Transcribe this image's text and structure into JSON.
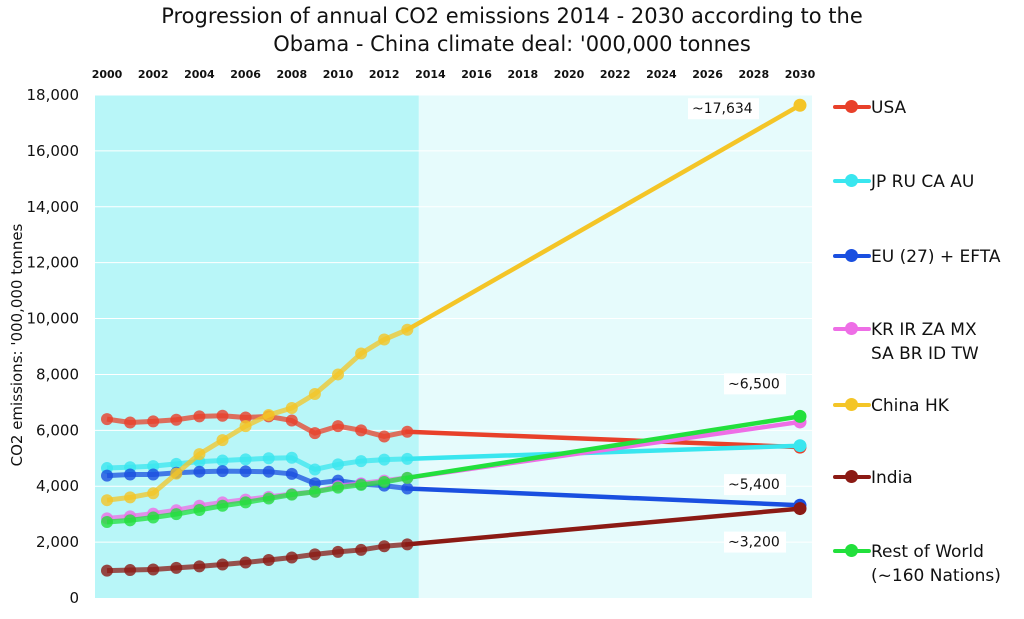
{
  "chart_data": {
    "type": "line",
    "title_line1": "Progression of annual CO2 emissions 2014 - 2030 according to the",
    "title_line2": "Obama - China climate deal:  '000,000 tonnes",
    "ylabel": "CO2 emissions: '000,000 tonnes",
    "xlabel": "",
    "xlim": [
      2000,
      2030
    ],
    "ylim": [
      0,
      18000
    ],
    "x_ticks": [
      2000,
      2002,
      2004,
      2006,
      2008,
      2010,
      2012,
      2014,
      2016,
      2018,
      2020,
      2022,
      2024,
      2026,
      2028,
      2030
    ],
    "y_ticks": [
      0,
      2000,
      4000,
      6000,
      8000,
      10000,
      12000,
      14000,
      16000,
      18000
    ],
    "y_tick_labels": [
      "0",
      "2,000",
      "4,000",
      "6,000",
      "8,000",
      "10,000",
      "12,000",
      "14,000",
      "16,000",
      "18,000"
    ],
    "historical_period": [
      2000,
      2013
    ],
    "projection_period": [
      2013,
      2030
    ],
    "grid": true,
    "legend_position": "right",
    "historical_x": [
      2000,
      2001,
      2002,
      2003,
      2004,
      2005,
      2006,
      2007,
      2008,
      2009,
      2010,
      2011,
      2012,
      2013
    ],
    "series": [
      {
        "name": "USA",
        "color": "#e8402a",
        "historical": [
          6400,
          6280,
          6320,
          6380,
          6500,
          6520,
          6460,
          6500,
          6350,
          5900,
          6150,
          6000,
          5780,
          5950
        ],
        "projection": [
          [
            2013,
            5950
          ],
          [
            2030,
            5400
          ]
        ]
      },
      {
        "name": "JP RU CA AU",
        "color": "#39e6ef",
        "historical": [
          4650,
          4680,
          4720,
          4800,
          4880,
          4920,
          4960,
          5000,
          5020,
          4600,
          4780,
          4900,
          4950,
          4980
        ],
        "projection": [
          [
            2013,
            4980
          ],
          [
            2030,
            5450
          ]
        ]
      },
      {
        "name": "EU (27) + EFTA",
        "color": "#1a4fe0",
        "historical": [
          4380,
          4420,
          4420,
          4480,
          4520,
          4540,
          4530,
          4520,
          4440,
          4100,
          4200,
          4080,
          4020,
          3920
        ],
        "projection": [
          [
            2013,
            3920
          ],
          [
            2030,
            3320
          ]
        ]
      },
      {
        "name": "KR IR ZA MX\nSA BR ID TW",
        "color": "#ee6ee6",
        "historical": [
          2850,
          2920,
          3020,
          3140,
          3300,
          3420,
          3520,
          3620,
          3720,
          3800,
          4000,
          4100,
          4200,
          4300
        ],
        "projection": [
          [
            2013,
            4300
          ],
          [
            2030,
            6300
          ]
        ]
      },
      {
        "name": "China HK",
        "color": "#f4c527",
        "historical": [
          3500,
          3600,
          3750,
          4450,
          5150,
          5650,
          6150,
          6550,
          6800,
          7300,
          8000,
          8750,
          9250,
          9600
        ],
        "projection": [
          [
            2013,
            9600
          ],
          [
            2030,
            17634
          ]
        ]
      },
      {
        "name": "India",
        "color": "#8b1a14",
        "historical": [
          980,
          1000,
          1020,
          1080,
          1130,
          1200,
          1270,
          1360,
          1450,
          1560,
          1650,
          1720,
          1850,
          1920
        ],
        "projection": [
          [
            2013,
            1920
          ],
          [
            2030,
            3200
          ]
        ]
      },
      {
        "name": "Rest of World\n(~160 Nations)",
        "color": "#22e03c",
        "historical": [
          2720,
          2780,
          2880,
          3000,
          3150,
          3300,
          3420,
          3560,
          3700,
          3800,
          3950,
          4050,
          4150,
          4300
        ],
        "projection": [
          [
            2013,
            4300
          ],
          [
            2030,
            6500
          ]
        ]
      }
    ],
    "annotations": [
      {
        "text": "~17,634",
        "x": 2030,
        "y": 17634
      },
      {
        "text": "~6,500",
        "x": 2030,
        "y": 6500
      },
      {
        "text": "~5,400",
        "x": 2030,
        "y": 5400
      },
      {
        "text": "~3,200",
        "x": 2030,
        "y": 3200
      }
    ]
  }
}
